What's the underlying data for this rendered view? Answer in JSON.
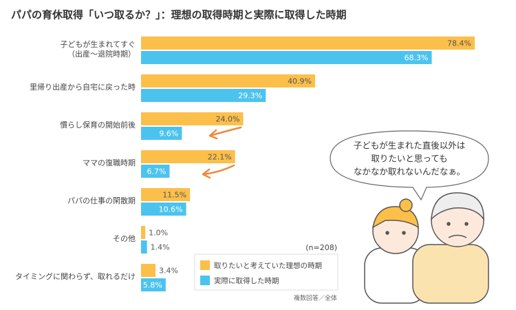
{
  "chart_data": {
    "type": "hbar",
    "title": "パパの育休取得「いつ取るか？」：理想の取得時期と実際に取得した時期",
    "categories": [
      "子どもが生まれてすぐ\n（出産〜退院時期）",
      "里帰り出産から自宅に戻った時",
      "慣らし保育の開始前後",
      "ママの復職時期",
      "パパの仕事の閑散期",
      "その他",
      "タイミングに関わらず、取れるだけ"
    ],
    "series": [
      {
        "name": "取りたいと考えていた理想の時期",
        "color": "#fbbf4a",
        "values": [
          78.4,
          40.9,
          24.0,
          22.1,
          11.5,
          1.0,
          3.4
        ],
        "value_labels": [
          "78.4%",
          "40.9%",
          "24.0%",
          "22.1%",
          "11.5%",
          "1.0%",
          "3.4%"
        ]
      },
      {
        "name": "実際に取得した時期",
        "color": "#4cc3ef",
        "values": [
          68.3,
          29.3,
          9.6,
          6.7,
          10.6,
          1.4,
          5.8
        ],
        "value_labels": [
          "68.3%",
          "29.3%",
          "9.6%",
          "6.7%",
          "10.6%",
          "1.4%",
          "5.8%"
        ]
      }
    ],
    "n_label": "(n=208)",
    "footnote": "複数回答／全体",
    "speech": [
      "子どもが生まれた直後以外は",
      "取りたいと思っても",
      "なかなか取れないんだなぁ。"
    ]
  }
}
